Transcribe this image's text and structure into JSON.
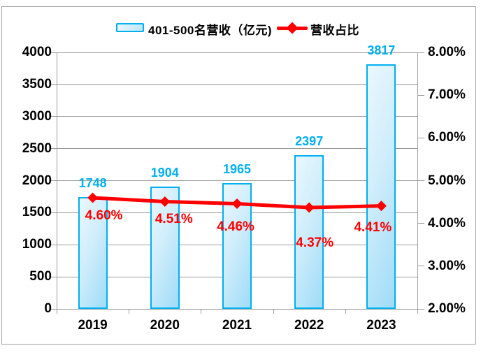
{
  "legend": {
    "bar_label": "401-500名营收（亿元)",
    "line_label": "营收占比"
  },
  "colors": {
    "bar_border": "#00B0F0",
    "bar_fill_light": "#EAF7FE",
    "bar_fill_dark": "#9FDCF8",
    "line": "#FF0000",
    "value_label": "#00B0F0",
    "pct_label": "#FF0000",
    "grid": "#9A9A9A",
    "axis_text": "#000000"
  },
  "chart_data": {
    "type": "combo",
    "categories": [
      "2019",
      "2020",
      "2021",
      "2022",
      "2023"
    ],
    "series": [
      {
        "name": "401-500名营收（亿元)",
        "type": "bar",
        "axis": "left",
        "values": [
          1748,
          1904,
          1965,
          2397,
          3817
        ],
        "labels": [
          "1748",
          "1904",
          "1965",
          "2397",
          "3817"
        ]
      },
      {
        "name": "营收占比",
        "type": "line",
        "axis": "right",
        "values": [
          4.6,
          4.51,
          4.46,
          4.37,
          4.41
        ],
        "labels": [
          "4.60%",
          "4.51%",
          "4.46%",
          "4.37%",
          "4.41%"
        ]
      }
    ],
    "left_axis": {
      "min": 0,
      "max": 4000,
      "step": 500,
      "tick_labels": [
        "0",
        "500",
        "1000",
        "1500",
        "2000",
        "2500",
        "3000",
        "3500",
        "4000"
      ]
    },
    "right_axis": {
      "min": 2,
      "max": 8,
      "step": 1,
      "tick_labels": [
        "2.00%",
        "3.00%",
        "4.00%",
        "5.00%",
        "6.00%",
        "7.00%",
        "8.00%"
      ]
    },
    "grid": true,
    "legend_position": "top",
    "title": ""
  }
}
